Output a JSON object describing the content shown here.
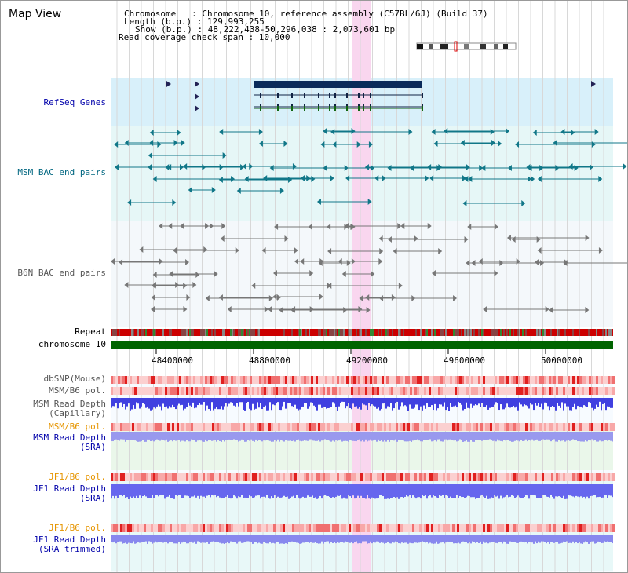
{
  "view": {
    "title": "Map View",
    "chromosome": "Chromosome   : Chromosome 10, reference assembly (C57BL/6J) (Build 37)",
    "length": "Length (b.p.) : 129,993,255",
    "show": "Show (b.p.) : 48,222,438-50,296,038 : 2,073,601 bp",
    "coverage": "Read coverage check span : 10,000"
  },
  "tracks": {
    "refseq": "RefSeq Genes",
    "msm_bac": "MSM BAC end pairs",
    "b6n_bac": "B6N BAC end pairs",
    "repeat": "Repeat",
    "chromosome": "chromosome 10",
    "dbsnp": "dbSNP(Mouse)",
    "msm_b6_pol_1": "MSM/B6 pol.",
    "msm_depth_cap_1": "MSM Read Depth",
    "msm_depth_cap_2": "(Capillary)",
    "msm_b6_pol_2": "MSM/B6 pol.",
    "msm_depth_sra_1": "MSM Read Depth",
    "msm_depth_sra_2": "(SRA)",
    "jf1_b6_pol_1": "JF1/B6 pol.",
    "jf1_depth_sra_1": "JF1 Read Depth",
    "jf1_depth_sra_2": "(SRA)",
    "jf1_b6_pol_2": "JF1/B6 pol.",
    "jf1_depth_trim_1": "JF1 Read Depth",
    "jf1_depth_trim_2": "(SRA trimmed)"
  },
  "axis": {
    "ticks": [
      "48400000",
      "48800000",
      "49200000",
      "49600000",
      "50000000"
    ]
  },
  "colors": {
    "refseq_bg": "#d8f0fa",
    "msm_bg": "#e6f7f7",
    "b6n_bg": "#f4f8fb",
    "highlight": "#f9d6ef",
    "chromosome_bar": "#006400",
    "label_blue": "#0000aa",
    "label_teal": "#006680",
    "label_gray": "#555555",
    "label_orange": "#e69500"
  }
}
